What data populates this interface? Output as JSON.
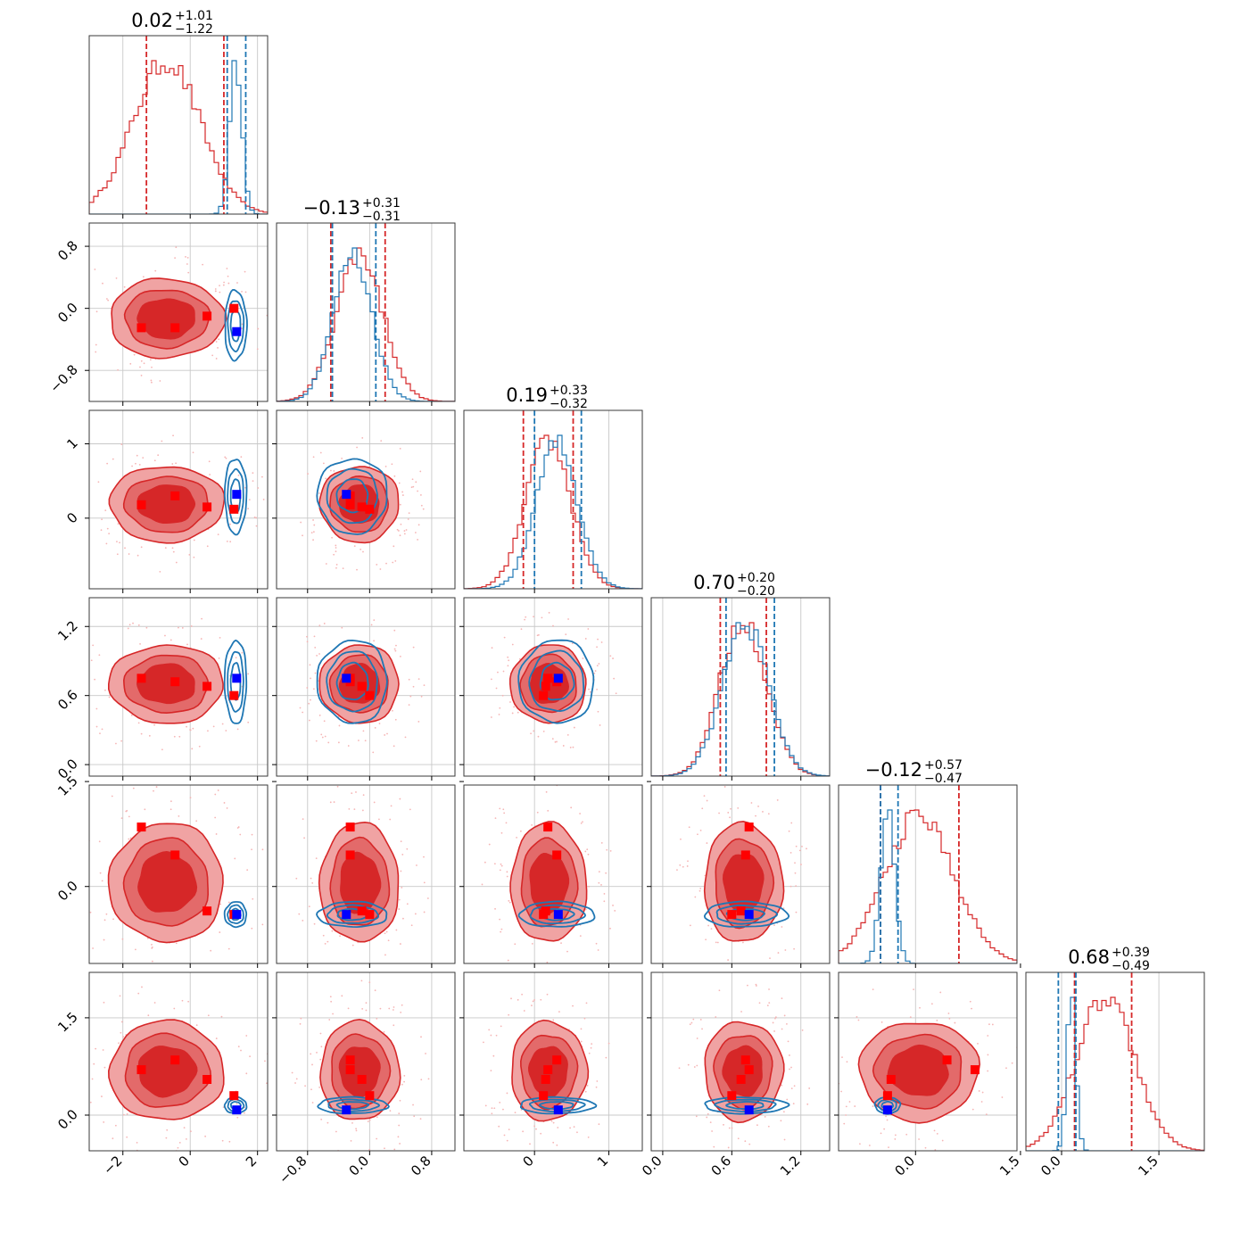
{
  "chart_data": {
    "type": "corner",
    "parameters": 6,
    "grid": true,
    "colors": {
      "red_series": "#d62728",
      "blue_series": "#1f77b4",
      "red_marker": "#ff0000",
      "blue_marker": "#0000ff",
      "red_fill_outer": "#f0a3a3",
      "red_fill_inner": "#d62728"
    },
    "titles": [
      {
        "value": "0.02",
        "plus": "+1.01",
        "minus": "−1.22"
      },
      {
        "value": "−0.13",
        "plus": "+0.31",
        "minus": "−0.31"
      },
      {
        "value": "0.19",
        "plus": "+0.33",
        "minus": "−0.32"
      },
      {
        "value": "0.70",
        "plus": "+0.20",
        "minus": "−0.20"
      },
      {
        "value": "−0.12",
        "plus": "+0.57",
        "minus": "−0.47"
      },
      {
        "value": "0.68",
        "plus": "+0.39",
        "minus": "−0.49"
      }
    ],
    "ranges": [
      [
        -3.0,
        2.3
      ],
      [
        -1.2,
        1.1
      ],
      [
        -0.95,
        1.45
      ],
      [
        -0.1,
        1.45
      ],
      [
        -1.1,
        1.45
      ],
      [
        -0.55,
        2.2
      ]
    ],
    "ticks": [
      {
        "values": [
          -2,
          0,
          2
        ],
        "labels": [
          "−2",
          "0",
          "2"
        ]
      },
      {
        "values": [
          -0.8,
          0.0,
          0.8
        ],
        "labels": [
          "−0.8",
          "0.0",
          "0.8"
        ]
      },
      {
        "values": [
          0,
          1
        ],
        "labels": [
          "0",
          "1"
        ]
      },
      {
        "values": [
          0.0,
          0.6,
          1.2
        ],
        "labels": [
          "0.0",
          "0.6",
          "1.2"
        ]
      },
      {
        "values": [
          0.0,
          1.5
        ],
        "labels": [
          "0.0",
          "1.5"
        ]
      },
      {
        "values": [
          0.0,
          1.5
        ],
        "labels": [
          "0.0",
          "1.5"
        ]
      }
    ],
    "red": {
      "centers": [
        -0.7,
        -0.13,
        0.19,
        0.7,
        0.05,
        0.68
      ],
      "sigmas": [
        1.0,
        0.3,
        0.3,
        0.2,
        0.5,
        0.45
      ],
      "quantiles": [
        [
          -1.3,
          1.0
        ],
        [
          -0.5,
          0.2
        ],
        [
          -0.15,
          0.52
        ],
        [
          0.5,
          0.9
        ],
        [
          -0.5,
          0.62
        ],
        [
          0.2,
          1.08
        ]
      ]
    },
    "blue": {
      "centers": [
        1.35,
        -0.22,
        0.3,
        0.72,
        -0.4,
        0.15
      ],
      "sigmas": [
        0.18,
        0.25,
        0.28,
        0.2,
        0.1,
        0.07
      ],
      "quantiles": [
        [
          1.1,
          1.65
        ],
        [
          -0.48,
          0.08
        ],
        [
          0.0,
          0.63
        ],
        [
          0.55,
          0.97
        ],
        [
          -0.5,
          -0.25
        ],
        [
          -0.05,
          0.22
        ]
      ]
    },
    "red_points": [
      [
        -1.45,
        -0.25,
        0.18,
        0.75,
        0.85,
        0.7
      ],
      [
        -0.45,
        -0.25,
        0.3,
        0.72,
        0.45,
        0.85
      ],
      [
        0.5,
        -0.1,
        0.15,
        0.68,
        -0.35,
        0.55
      ],
      [
        1.3,
        0.0,
        0.12,
        0.6,
        -0.4,
        0.3
      ]
    ],
    "blue_point": [
      1.38,
      -0.3,
      0.32,
      0.75,
      -0.4,
      0.08
    ]
  }
}
